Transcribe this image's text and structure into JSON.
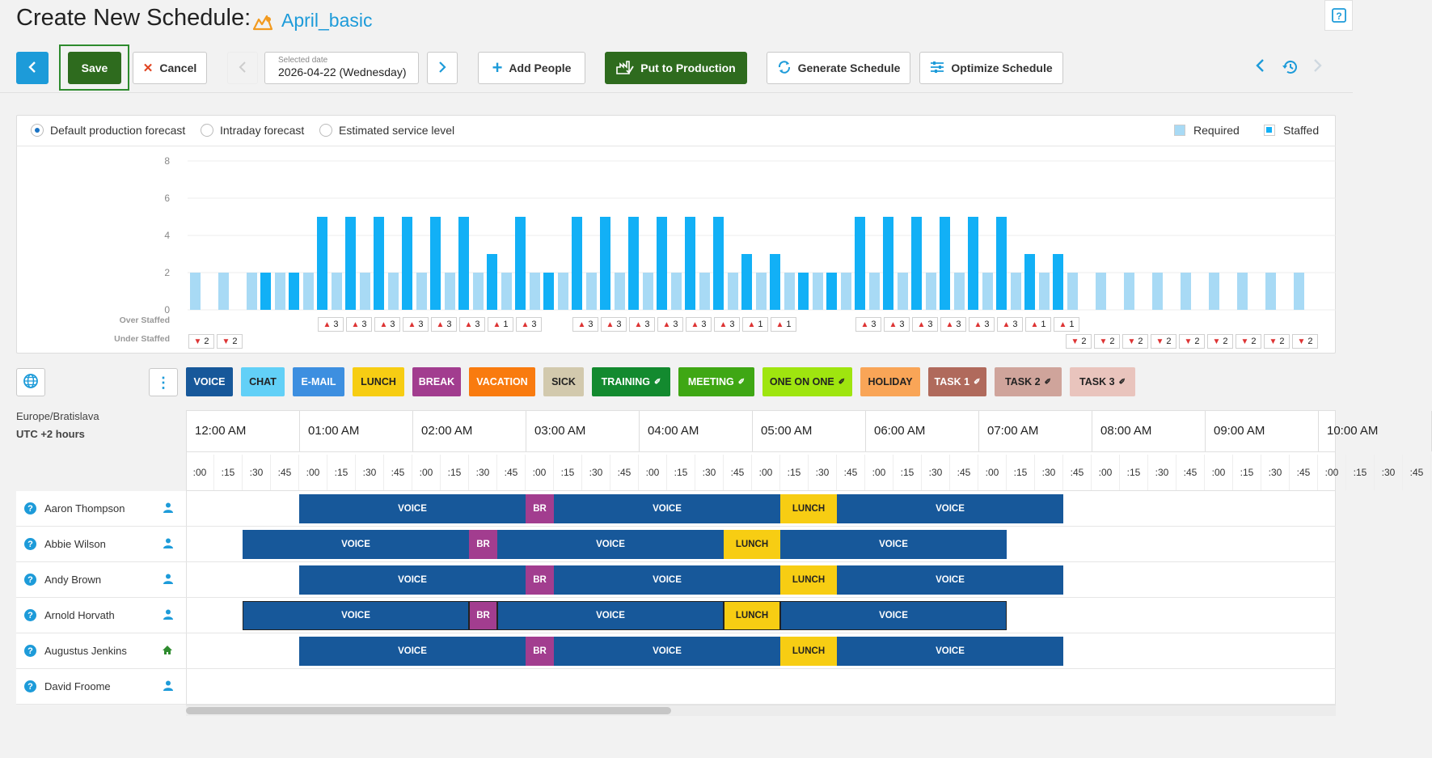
{
  "header": {
    "title": "Create New Schedule:",
    "schedule_name": "April_basic",
    "help_icon": "help-icon"
  },
  "toolbar": {
    "save_label": "Save",
    "cancel_label": "Cancel",
    "date_label": "Selected date",
    "date_value": "2026-04-22 (Wednesday)",
    "add_people_label": "Add People",
    "put_production_label": "Put to Production",
    "generate_label": "Generate Schedule",
    "optimize_label": "Optimize Schedule"
  },
  "forecast": {
    "options": [
      "Default production forecast",
      "Intraday forecast",
      "Estimated service level"
    ],
    "selected": 0,
    "legend_required": "Required",
    "legend_staffed": "Staffed",
    "over_staffed_label": "Over Staffed",
    "under_staffed_label": "Under Staffed"
  },
  "chart_data": {
    "type": "bar",
    "yticks": [
      "8",
      "6",
      "4",
      "2",
      "0"
    ],
    "ylim": [
      0,
      8
    ],
    "series": [
      {
        "name": "Required",
        "color": "#a8daf5",
        "values": [
          2,
          2,
          2,
          2,
          2,
          2,
          2,
          2,
          2,
          2,
          2,
          2,
          2,
          2,
          2,
          2,
          2,
          2,
          2,
          2,
          2,
          2,
          2,
          2,
          2,
          2,
          2,
          2,
          2,
          2,
          2,
          2,
          2,
          2,
          2,
          2,
          2,
          2,
          2,
          2
        ]
      },
      {
        "name": "Staffed",
        "color": "#12b0f6",
        "values": [
          0,
          0,
          2,
          2,
          5,
          5,
          5,
          5,
          5,
          5,
          3,
          5,
          2,
          5,
          5,
          5,
          5,
          5,
          5,
          3,
          3,
          2,
          2,
          5,
          5,
          5,
          5,
          5,
          5,
          3,
          3,
          0,
          0,
          0,
          0,
          0,
          0,
          0,
          0,
          0
        ]
      }
    ],
    "over_staffed": [
      null,
      null,
      null,
      null,
      "3",
      "3",
      "3",
      "3",
      "3",
      "3",
      "1",
      "3",
      null,
      "3",
      "3",
      "3",
      "3",
      "3",
      "3",
      "1",
      "1",
      null,
      null,
      "3",
      "3",
      "3",
      "3",
      "3",
      "3",
      "1",
      "1",
      null,
      null,
      null,
      null,
      null,
      null,
      null,
      null,
      null
    ],
    "under_staffed": [
      "2",
      "2",
      null,
      null,
      null,
      null,
      null,
      null,
      null,
      null,
      null,
      null,
      null,
      null,
      null,
      null,
      null,
      null,
      null,
      null,
      null,
      null,
      null,
      null,
      null,
      null,
      null,
      null,
      null,
      null,
      null,
      "2",
      "2",
      "2",
      "2",
      "2",
      "2",
      "2",
      "2",
      "2"
    ]
  },
  "activities": [
    {
      "label": "VOICE",
      "color": "#17589a"
    },
    {
      "label": "CHAT",
      "color": "#62d0f7",
      "dark": true
    },
    {
      "label": "E-MAIL",
      "color": "#3d8fe0"
    },
    {
      "label": "LUNCH",
      "color": "#f7cd13",
      "dark": true
    },
    {
      "label": "BREAK",
      "color": "#a23d8f"
    },
    {
      "label": "VACATION",
      "color": "#f97b0f"
    },
    {
      "label": "SICK",
      "color": "#d2c9ad",
      "dark": true
    },
    {
      "label": "TRAINING",
      "color": "#138a2f",
      "pin": true
    },
    {
      "label": "MEETING",
      "color": "#3fa714",
      "pin": true
    },
    {
      "label": "ONE ON ONE",
      "color": "#9fe50f",
      "pin": true,
      "dark": true
    },
    {
      "label": "HOLIDAY",
      "color": "#f9a557",
      "dark": true
    },
    {
      "label": "TASK 1",
      "color": "#b06a5c",
      "pin": true
    },
    {
      "label": "TASK 2",
      "color": "#cfa49b",
      "pin": true,
      "dark": true
    },
    {
      "label": "TASK 3",
      "color": "#e9c4bd",
      "pin": true,
      "dark": true
    }
  ],
  "timezone": {
    "name": "Europe/Bratislava",
    "offset": "UTC +2 hours"
  },
  "timeline": {
    "hours": [
      "12:00 AM",
      "01:00 AM",
      "02:00 AM",
      "03:00 AM",
      "04:00 AM",
      "05:00 AM",
      "06:00 AM",
      "07:00 AM",
      "08:00 AM",
      "09:00 AM",
      "10:00 AM"
    ],
    "quarters": [
      ":00",
      ":15",
      ":30",
      ":45"
    ]
  },
  "agents": [
    {
      "name": "Aaron Thompson",
      "icon": "user-icon",
      "blocks": [
        [
          "VOICE",
          4,
          12
        ],
        [
          "BR",
          12,
          13
        ],
        [
          "VOICE",
          13,
          21
        ],
        [
          "LUNCH",
          21,
          23
        ],
        [
          "VOICE",
          23,
          31
        ]
      ]
    },
    {
      "name": "Abbie Wilson",
      "icon": "user-icon",
      "blocks": [
        [
          "VOICE",
          2,
          10
        ],
        [
          "BR",
          10,
          11
        ],
        [
          "VOICE",
          11,
          19
        ],
        [
          "LUNCH",
          19,
          21
        ],
        [
          "VOICE",
          21,
          29
        ]
      ]
    },
    {
      "name": "Andy Brown",
      "icon": "user-icon",
      "blocks": [
        [
          "VOICE",
          4,
          12
        ],
        [
          "BR",
          12,
          13
        ],
        [
          "VOICE",
          13,
          21
        ],
        [
          "LUNCH",
          21,
          23
        ],
        [
          "VOICE",
          23,
          31
        ]
      ]
    },
    {
      "name": "Arnold Horvath",
      "icon": "user-icon",
      "selected": true,
      "blocks": [
        [
          "VOICE",
          2,
          10
        ],
        [
          "BR",
          10,
          11
        ],
        [
          "VOICE",
          11,
          19
        ],
        [
          "LUNCH",
          19,
          21
        ],
        [
          "VOICE",
          21,
          29
        ]
      ]
    },
    {
      "name": "Augustus Jenkins",
      "icon": "home-icon",
      "blocks": [
        [
          "VOICE",
          4,
          12
        ],
        [
          "BR",
          12,
          13
        ],
        [
          "VOICE",
          13,
          21
        ],
        [
          "LUNCH",
          21,
          23
        ],
        [
          "VOICE",
          23,
          31
        ]
      ]
    },
    {
      "name": "David Froome",
      "icon": "user-icon",
      "blocks": []
    }
  ]
}
